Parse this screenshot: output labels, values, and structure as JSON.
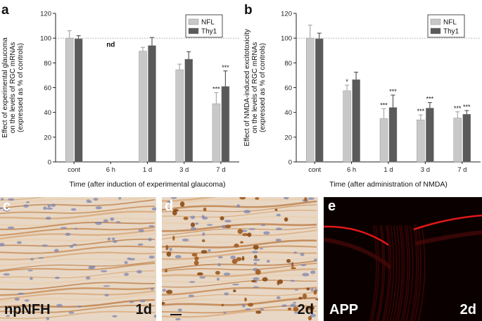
{
  "chart_data": [
    {
      "type": "bar",
      "panel_label": "a",
      "ylabel_lines": [
        "Effect of experimental glaucoma",
        "on the levels of RGC mRNAs",
        "(expressed as % of controls)"
      ],
      "xlabel": "Time (after induction of experimental glaucoma)",
      "categories": [
        "cont",
        "6 h",
        "1 d",
        "3 d",
        "7 d"
      ],
      "ylim": [
        0,
        120
      ],
      "yticks": [
        "0",
        "20",
        "40",
        "60",
        "80",
        "100",
        "120"
      ],
      "reference_line": 100,
      "legend_position": "top-right",
      "series": [
        {
          "name": "NFL",
          "color": "#c8c8c8",
          "values": [
            100,
            null,
            89.5,
            74.5,
            47
          ],
          "errors": [
            6,
            null,
            3,
            4.5,
            9
          ],
          "labels": [
            "",
            "",
            "",
            "",
            "***"
          ]
        },
        {
          "name": "Thy1",
          "color": "#5a5a5a",
          "values": [
            99.5,
            null,
            94,
            83,
            61
          ],
          "errors": [
            2.5,
            null,
            6.5,
            6,
            12.5
          ],
          "labels": [
            "",
            "",
            "",
            "",
            "***"
          ]
        }
      ],
      "annotations": [
        {
          "category": "6 h",
          "text": "nd"
        }
      ]
    },
    {
      "type": "bar",
      "panel_label": "b",
      "ylabel_lines": [
        "Effect of NMDA-induced excitotoxicity",
        "on the levels of RGC mRNAs",
        "(expressed as % of controls)"
      ],
      "xlabel": "Time (after administration of NMDA)",
      "categories": [
        "cont",
        "6 h",
        "1 d",
        "3 d",
        "7 d"
      ],
      "ylim": [
        0,
        120
      ],
      "yticks": [
        "0",
        "20",
        "40",
        "60",
        "80",
        "100",
        "120"
      ],
      "reference_line": 100,
      "legend_position": "top-right",
      "series": [
        {
          "name": "NFL",
          "color": "#c8c8c8",
          "values": [
            100,
            57.5,
            35,
            34,
            35.5
          ],
          "errors": [
            10.5,
            4.5,
            8,
            4,
            5
          ],
          "labels": [
            "",
            "*",
            "***",
            "***",
            "***"
          ]
        },
        {
          "name": "Thy1",
          "color": "#5a5a5a",
          "values": [
            99.5,
            66.5,
            44,
            43.5,
            38.5
          ],
          "errors": [
            4.5,
            6,
            10,
            4.5,
            3
          ],
          "labels": [
            "",
            "",
            "***",
            "***",
            "***"
          ]
        }
      ],
      "annotations": []
    }
  ],
  "panels": {
    "c": {
      "label": "c",
      "stain": "npNFH",
      "time": "1d"
    },
    "d": {
      "label": "d",
      "time": "2d"
    },
    "e": {
      "label": "e",
      "stain": "APP",
      "time": "2d"
    }
  },
  "colors": {
    "photo_light": "#e8d7c4",
    "photo_dark": "#111111",
    "fluorescence": "#e01818"
  }
}
